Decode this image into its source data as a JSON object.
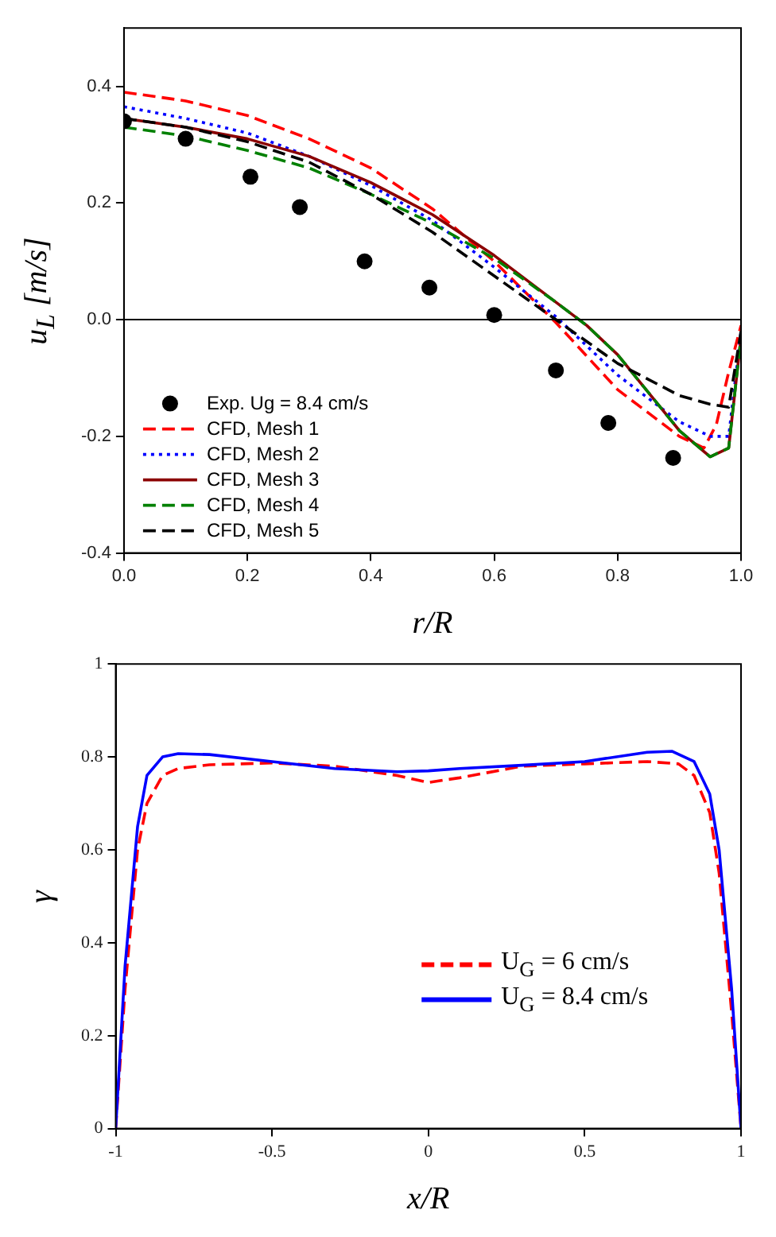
{
  "chart_data": [
    {
      "type": "line",
      "xlabel": "r/R",
      "ylabel": "u$_{L}$ [m/s]",
      "xlim": [
        0,
        1
      ],
      "xticks": [
        {
          "value": 0,
          "label": "0.0"
        },
        0.2,
        0.4,
        0.6,
        0.8,
        {
          "value": 1,
          "label": "1.0"
        }
      ],
      "ylim": [
        -0.4,
        0.5
      ],
      "yticks": [
        -0.4,
        -0.2,
        {
          "value": 0,
          "label": "0.0"
        },
        0.2,
        0.4
      ],
      "grid": false,
      "legend": "bottom left",
      "ref_lines": [
        {
          "axis": "y",
          "value": 0,
          "color": "#000000",
          "line_style": "solid"
        }
      ],
      "series": [
        {
          "name": "Exp. Ug = 8.4 cm/s",
          "type": "scatter",
          "marker": "circle",
          "color": "#000000",
          "x": [
            0,
            0.1,
            0.205,
            0.285,
            0.39,
            0.495,
            0.6,
            0.7,
            0.785,
            0.89
          ],
          "values": [
            0.34,
            0.31,
            0.245,
            0.193,
            0.1,
            0.055,
            0.008,
            -0.087,
            -0.177,
            -0.237
          ]
        },
        {
          "name": "CFD, Mesh 1",
          "type": "line",
          "marker": "none",
          "line_style": "dashed",
          "color": "#ff0000",
          "x": [
            0,
            0.1,
            0.2,
            0.3,
            0.4,
            0.5,
            0.6,
            0.7,
            0.8,
            0.9,
            0.94,
            0.96,
            0.98,
            1
          ],
          "values": [
            0.39,
            0.375,
            0.35,
            0.31,
            0.26,
            0.19,
            0.1,
            -0.005,
            -0.12,
            -0.2,
            -0.22,
            -0.18,
            -0.09,
            -0.01
          ]
        },
        {
          "name": "CFD, Mesh 2",
          "type": "line",
          "marker": "none",
          "line_style": "dotted",
          "color": "#0000ff",
          "x": [
            0,
            0.1,
            0.2,
            0.3,
            0.4,
            0.5,
            0.6,
            0.7,
            0.8,
            0.9,
            0.95,
            0.98,
            1
          ],
          "values": [
            0.365,
            0.345,
            0.32,
            0.28,
            0.23,
            0.17,
            0.09,
            0.005,
            -0.095,
            -0.175,
            -0.2,
            -0.2,
            -0.02
          ]
        },
        {
          "name": "CFD, Mesh 3",
          "type": "line",
          "marker": "none",
          "line_style": "solid",
          "color": "#8b0000",
          "x": [
            0,
            0.1,
            0.2,
            0.3,
            0.4,
            0.5,
            0.6,
            0.7,
            0.75,
            0.8,
            0.9,
            0.95,
            0.98,
            1
          ],
          "values": [
            0.345,
            0.33,
            0.31,
            0.28,
            0.235,
            0.18,
            0.11,
            0.03,
            -0.01,
            -0.06,
            -0.19,
            -0.235,
            -0.22,
            -0.03
          ]
        },
        {
          "name": "CFD, Mesh 4",
          "type": "line",
          "marker": "none",
          "line_style": "dashed",
          "color": "#008000",
          "x": [
            0,
            0.1,
            0.2,
            0.3,
            0.4,
            0.5,
            0.6,
            0.7,
            0.75,
            0.8,
            0.9,
            0.95,
            0.98,
            1
          ],
          "values": [
            0.33,
            0.315,
            0.29,
            0.26,
            0.215,
            0.165,
            0.105,
            0.03,
            -0.01,
            -0.06,
            -0.19,
            -0.235,
            -0.22,
            -0.03
          ]
        },
        {
          "name": "CFD, Mesh 5",
          "type": "line",
          "marker": "none",
          "line_style": "dashed",
          "color": "#000000",
          "x": [
            0,
            0.1,
            0.2,
            0.3,
            0.4,
            0.5,
            0.6,
            0.7,
            0.8,
            0.9,
            0.95,
            0.98,
            1
          ],
          "values": [
            0.345,
            0.33,
            0.305,
            0.27,
            0.215,
            0.15,
            0.075,
            0,
            -0.075,
            -0.13,
            -0.145,
            -0.15,
            -0.02
          ]
        }
      ]
    },
    {
      "type": "line",
      "xlabel": "x/R",
      "ylabel": "γ",
      "xlim": [
        -1,
        1
      ],
      "xticks": [
        -1,
        -0.5,
        0,
        0.5,
        1
      ],
      "ylim": [
        0,
        1
      ],
      "yticks": [
        0,
        0.2,
        0.4,
        0.6,
        0.8,
        1
      ],
      "grid": false,
      "legend": "bottom right",
      "series": [
        {
          "name": "U$_{G}$ = 6 cm/s",
          "type": "line",
          "marker": "none",
          "line_style": "dashed",
          "color": "#ff0000",
          "x": [
            -1,
            -0.97,
            -0.93,
            -0.9,
            -0.85,
            -0.8,
            -0.7,
            -0.5,
            -0.3,
            -0.1,
            0,
            0.1,
            0.3,
            0.5,
            0.7,
            0.8,
            0.85,
            0.9,
            0.93,
            0.97,
            1
          ],
          "values": [
            0,
            0.3,
            0.6,
            0.7,
            0.76,
            0.775,
            0.783,
            0.787,
            0.78,
            0.76,
            0.745,
            0.755,
            0.78,
            0.785,
            0.79,
            0.785,
            0.76,
            0.68,
            0.55,
            0.25,
            0
          ]
        },
        {
          "name": "U$_{G}$ = 8.4 cm/s",
          "type": "line",
          "marker": "none",
          "line_style": "solid",
          "color": "#0000ff",
          "x": [
            -1,
            -0.97,
            -0.93,
            -0.9,
            -0.85,
            -0.8,
            -0.7,
            -0.5,
            -0.3,
            -0.1,
            0,
            0.1,
            0.3,
            0.5,
            0.7,
            0.78,
            0.85,
            0.9,
            0.93,
            0.97,
            1
          ],
          "values": [
            0,
            0.35,
            0.65,
            0.76,
            0.8,
            0.807,
            0.805,
            0.79,
            0.775,
            0.768,
            0.77,
            0.775,
            0.782,
            0.79,
            0.81,
            0.812,
            0.79,
            0.72,
            0.6,
            0.3,
            0
          ]
        }
      ]
    }
  ]
}
